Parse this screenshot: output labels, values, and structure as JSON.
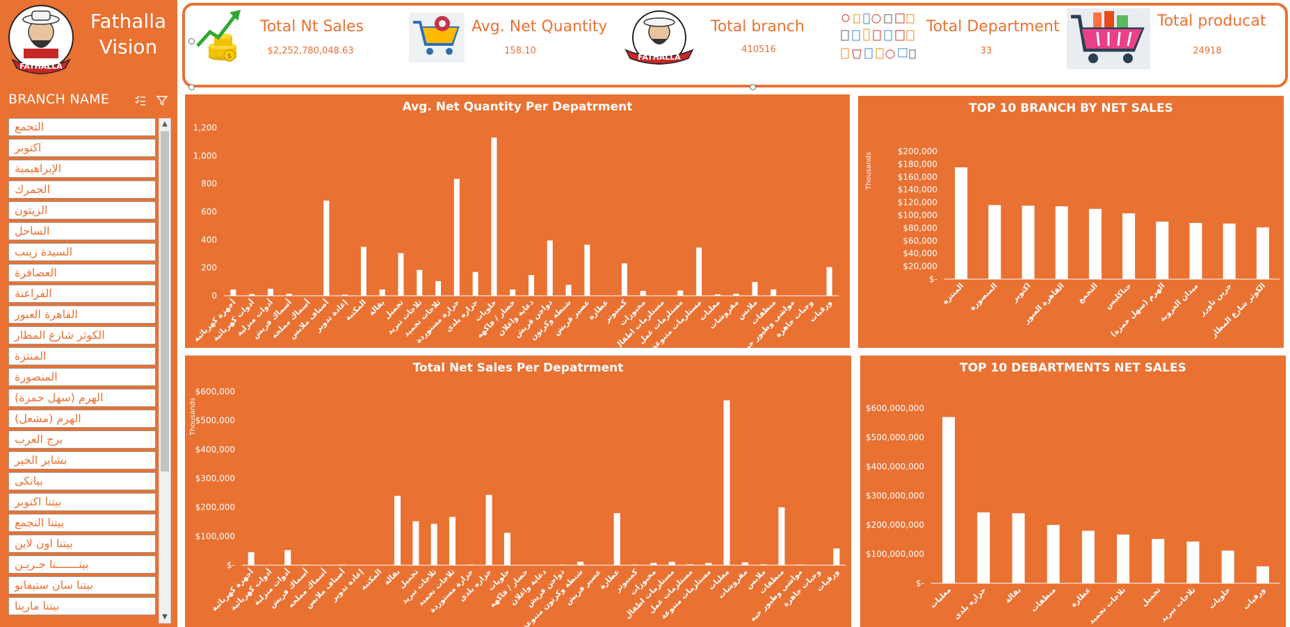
{
  "app": {
    "brand_line1": "Fathalla",
    "brand_line2": "Vision",
    "logo_text": "FATHALLA"
  },
  "slicer": {
    "title": "BRANCH NAME",
    "items": [
      "التجمع",
      "اكتوبر",
      "الإبراهيمية",
      "الجمرك",
      "الزيتون",
      "الساحل",
      "السيدة زينب",
      "العصافرة",
      "الفراعنة",
      "القاهرة العبور",
      "الكوثر شارع المطار",
      "المنتزة",
      "المنصورة",
      "الهرم (سهل حمزة)",
      "الهرم (مشعل)",
      "برج العرب",
      "بشاير الخير",
      "بيانكى",
      "بيتنا اكتوبر",
      "بيتنا التجمع",
      "بيتنا اون لاين",
      "بيتـــــــنا جـريـن",
      "بيتنا سان ستيفانو",
      "بيتنا مارينا"
    ]
  },
  "kpis": [
    {
      "title": "Total Nt Sales",
      "value": "$2,252,780,048.63",
      "icon": "money-growth-icon"
    },
    {
      "title": "Avg. Net Quantity",
      "value": "158.10",
      "icon": "shopping-cart-icon"
    },
    {
      "title": "Total branch",
      "value": "410516",
      "icon": "fathalla-logo-icon"
    },
    {
      "title": "Total Department",
      "value": "33",
      "icon": "grocery-products-icon"
    },
    {
      "title": "Total producat",
      "value": "24918",
      "icon": "grocery-basket-icon"
    }
  ],
  "colors": {
    "accent": "#E97132",
    "bar": "#FFFFFF",
    "text_on_accent": "#FFFFFF"
  },
  "chart_data": [
    {
      "id": "avg-qty-dept",
      "type": "bar",
      "title": "Avg. Net Quantity Per Depatrment",
      "ylabel": "",
      "ylim": [
        0,
        1200
      ],
      "yticks": [
        0,
        200,
        400,
        600,
        800,
        1000,
        1200
      ],
      "ytick_labels": [
        "0",
        "200",
        "400",
        "600",
        "800",
        "1,000",
        "1,200"
      ],
      "categories": [
        "أجهزة كهربائية",
        "أدوات كهربائية",
        "أدوات منزلية",
        "أسماك فريش",
        "أسماك مملحه",
        "أصناف ملابس",
        "إعادة تدوير",
        "المكتبة",
        "بقالة",
        "تجميل",
        "ثلاجات تبريد",
        "ثلاجات تجميد",
        "جزارة مستوردة",
        "جزاره بلدى",
        "حلويات",
        "خضار / فاكهه",
        "دعاية واعلان",
        "دواجن فريش",
        "شنطة وكرتون",
        "عصير فريش",
        "عطارة",
        "كمبيوتر",
        "مخبوزات",
        "مستلزمات اطفال",
        "مستلزمات عمل",
        "مستلزمات متنوعة",
        "معلبات",
        "مفروشات",
        "ملابس",
        "منظفات",
        "مواشى وطيور حيه",
        "وجبات جاهزة",
        "ورقيات"
      ],
      "values": [
        45,
        12,
        50,
        15,
        2,
        680,
        8,
        350,
        45,
        305,
        185,
        105,
        835,
        170,
        1130,
        45,
        148,
        395,
        78,
        365,
        0,
        232,
        35,
        0,
        38,
        345,
        10,
        15,
        98,
        45,
        2,
        0,
        205
      ]
    },
    {
      "id": "top10-branch",
      "type": "bar",
      "title": "TOP 10 BRANCH BY NET SALES",
      "ylabel": "Thousands",
      "ylim": [
        0,
        200000
      ],
      "yticks": [
        0,
        20000,
        40000,
        60000,
        80000,
        100000,
        120000,
        140000,
        160000,
        180000,
        200000
      ],
      "ytick_labels": [
        "$-",
        "$20,000",
        "$40,000",
        "$60,000",
        "$80,000",
        "$100,000",
        "$120,000",
        "$140,000",
        "$160,000",
        "$180,000",
        "$200,000"
      ],
      "categories": [
        "المنتزة",
        "المنصورة",
        "اكتوبر",
        "القاهرة العبور",
        "التجمع",
        "جناكليس",
        "الهرم (سهل حمزة)",
        "ميدان العروبة",
        "جرين تاورز",
        "الكوثر شارع المطار"
      ],
      "values": [
        175000,
        116000,
        115000,
        114000,
        110000,
        103000,
        90000,
        88000,
        87000,
        81000
      ]
    },
    {
      "id": "net-sales-dept",
      "type": "bar",
      "title": "Total  Net Sales Per Depatrment",
      "ylabel": "Thousands",
      "ylim": [
        0,
        600000
      ],
      "yticks": [
        0,
        100000,
        200000,
        300000,
        400000,
        500000,
        600000
      ],
      "ytick_labels": [
        "$-",
        "$100,000",
        "$200,000",
        "$300,000",
        "$400,000",
        "$500,000",
        "$600,000"
      ],
      "categories": [
        "أجهزة كهربائية",
        "أدوات كهربائية",
        "أدوات منزلية",
        "أسماك فريش",
        "أسماك مملحه",
        "أصناف ملابس",
        "إعادة تدوير",
        "المكتبة",
        "بقالة",
        "تجميل",
        "ثلاجات تبريد",
        "ثلاجات تجميد",
        "جزارة مستوردة",
        "جزاره بلدى",
        "حلويات",
        "خضار / فاكهه",
        "دعاية واعلان",
        "دواجن فريش",
        "شنطة وكرتون متنوعة",
        "عصير فريش",
        "عطارة",
        "كمبيوتر",
        "مخبوزات",
        "مستلزمات اطفال",
        "مستلزمات عمل",
        "مستلزمات متنوعة",
        "معلبات",
        "مفروشات",
        "ملابس",
        "منظفات",
        "مواشى وطيور حيه",
        "وجبات جاهزة",
        "ورقيات"
      ],
      "values": [
        45000,
        1000,
        52000,
        2000,
        1000,
        2000,
        1000,
        1000,
        240000,
        152000,
        143000,
        167000,
        2000,
        243000,
        112000,
        1000,
        1000,
        2000,
        12000,
        1000,
        180000,
        2000,
        8000,
        12000,
        3000,
        8000,
        570000,
        10000,
        3000,
        200000,
        2000,
        1000,
        58000
      ]
    },
    {
      "id": "top10-dept",
      "type": "bar",
      "title": "TOP 10 DEBARTMENTS NET SALES",
      "ylabel": "",
      "ylim": [
        0,
        600000000
      ],
      "yticks": [
        0,
        100000000,
        200000000,
        300000000,
        400000000,
        500000000,
        600000000
      ],
      "ytick_labels": [
        "$-",
        "$100,000,000",
        "$200,000,000",
        "$300,000,000",
        "$400,000,000",
        "$500,000,000",
        "$600,000,000"
      ],
      "categories": [
        "معلبات",
        "جزاره بلدى",
        "بقالة",
        "منظفات",
        "عطارة",
        "ثلاجات تجميد",
        "تجميل",
        "ثلاجات تبريد",
        "حلويات",
        "ورقيات"
      ],
      "values": [
        570000000,
        243000000,
        240000000,
        200000000,
        180000000,
        167000000,
        152000000,
        143000000,
        112000000,
        58000000
      ]
    }
  ]
}
